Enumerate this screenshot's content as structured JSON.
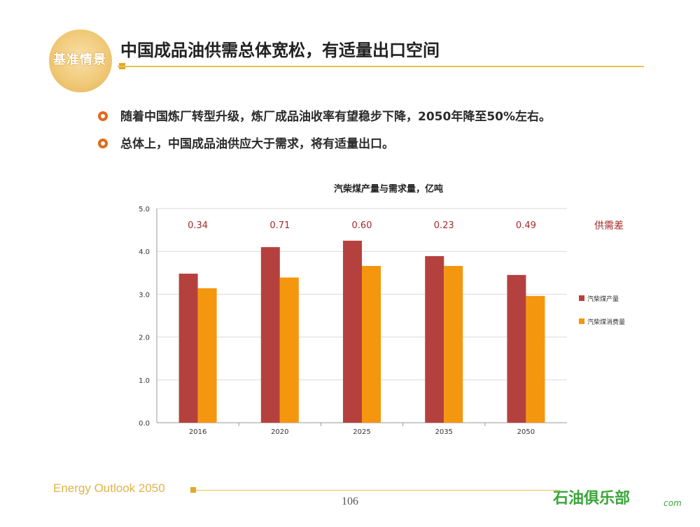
{
  "logo": {
    "text": "基准情景"
  },
  "slide": {
    "title": "中国成品油供需总体宽松，有适量出口空间",
    "bullets": [
      "随着中国炼厂转型升级，炼厂成品油收率有望稳步下降，2050年降至50%左右。",
      "总体上，中国成品油供应大于需求，将有适量出口。"
    ]
  },
  "footer": {
    "left": "Energy Outlook 2050",
    "page": "106",
    "watermark": "石油俱乐部",
    "watermark_sub": "com"
  },
  "colors": {
    "production": "#b5413f",
    "consumption": "#f5960f",
    "gap_label": "#a52a2a",
    "accent": "#e7c34c"
  },
  "chart_data": {
    "type": "bar",
    "title": "汽柴煤产量与需求量，亿吨",
    "categories": [
      "2016",
      "2020",
      "2025",
      "2035",
      "2050"
    ],
    "series": [
      {
        "name": "汽柴煤产量",
        "values": [
          3.48,
          4.1,
          4.25,
          3.89,
          3.45
        ]
      },
      {
        "name": "汽柴煤消费量",
        "values": [
          3.14,
          3.39,
          3.66,
          3.66,
          2.96
        ]
      }
    ],
    "ylim": [
      0,
      5
    ],
    "yticks": [
      "0.0",
      "1.0",
      "2.0",
      "3.0",
      "4.0",
      "5.0"
    ],
    "annotation_title": "供需差",
    "annotations": [
      "0.34",
      "0.71",
      "0.60",
      "0.23",
      "0.49"
    ],
    "grid": true,
    "legend": "right"
  }
}
